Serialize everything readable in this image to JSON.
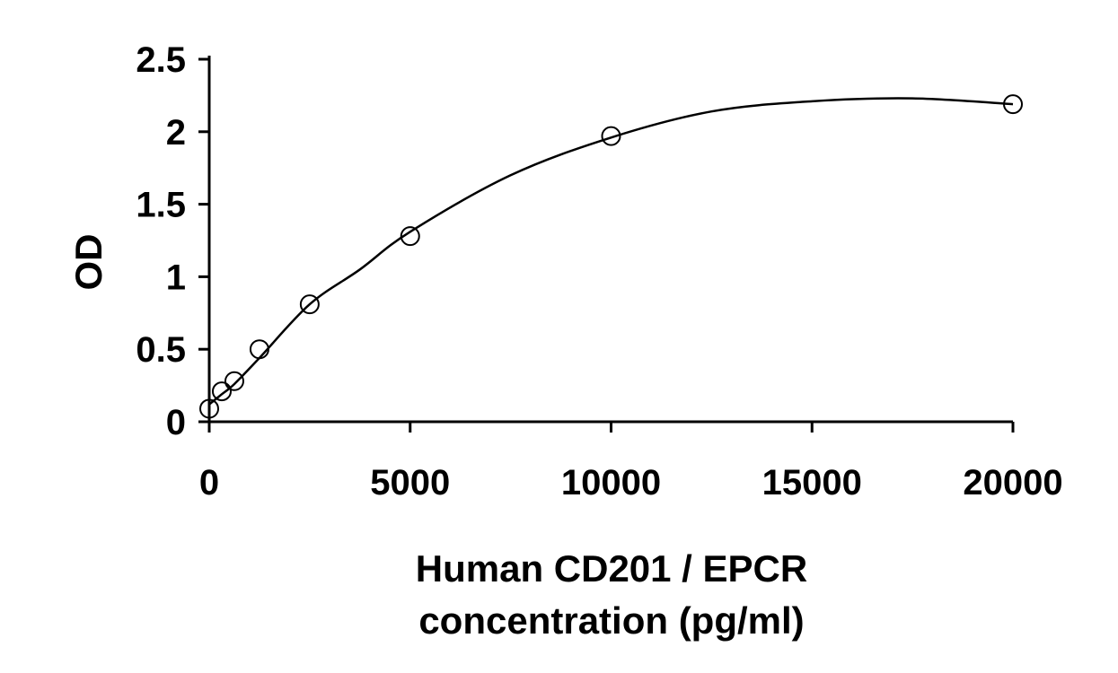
{
  "chart_data": {
    "type": "scatter",
    "title": "",
    "xlabel_lines": [
      "Human CD201 / EPCR",
      "concentration (pg/ml)"
    ],
    "ylabel": "OD",
    "xlim": [
      0,
      20000
    ],
    "ylim": [
      0,
      2.5
    ],
    "x_ticks": [
      0,
      5000,
      10000,
      15000,
      20000
    ],
    "y_ticks": [
      0,
      0.5,
      1,
      1.5,
      2,
      2.5
    ],
    "x_tick_labels": [
      "0",
      "5000",
      "10000",
      "15000",
      "20000"
    ],
    "y_tick_labels": [
      "0",
      "0.5",
      "1",
      "1.5",
      "2",
      "2.5"
    ],
    "grid": false,
    "legend": "none",
    "series": [
      {
        "marker": "open-circle",
        "points": [
          {
            "x": 0,
            "y": 0.09
          },
          {
            "x": 312.5,
            "y": 0.21
          },
          {
            "x": 625,
            "y": 0.28
          },
          {
            "x": 1250,
            "y": 0.5
          },
          {
            "x": 2500,
            "y": 0.81
          },
          {
            "x": 5000,
            "y": 1.28
          },
          {
            "x": 10000,
            "y": 1.97
          },
          {
            "x": 20000,
            "y": 2.19
          }
        ]
      }
    ],
    "fit_curve": {
      "x": [
        0,
        312.5,
        625,
        1250,
        2500,
        3750,
        5000,
        7500,
        10000,
        12500,
        15000,
        17500,
        20000
      ],
      "y": [
        0.12,
        0.19,
        0.26,
        0.44,
        0.81,
        1.05,
        1.31,
        1.7,
        1.96,
        2.14,
        2.21,
        2.23,
        2.19
      ]
    }
  }
}
